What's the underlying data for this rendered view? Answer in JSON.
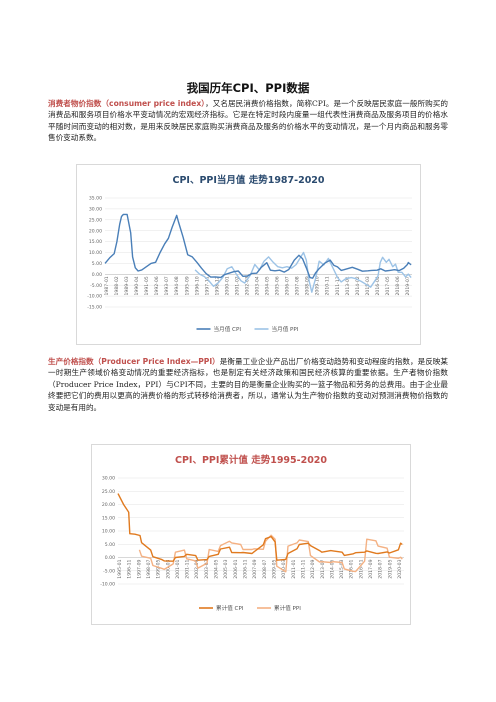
{
  "doc": {
    "title": "我国历年CPI、PPI数据",
    "p1_term": "消费者物价指数（consumer price index）",
    "p1_text": "，又名居民消费价格指数，简称CPI。是一个反映居民家庭一般所购买的消费品和服务项目价格水平变动情况的宏观经济指标。它是在特定时段内度量一组代表性消费商品及服务项目的价格水平随时间而变动的相对数，是用来反映居民家庭购买消费商品及服务的价格水平的变动情况，是一个月内商品和服务零售价变动系数。",
    "p2_term": "生产价格指数（Producer Price Index—PPI）",
    "p2_text": "是衡量工业企业产品出厂价格变动趋势和变动程度的指数，是反映某一时期生产领域价格变动情况的重要经济指标，也是制定有关经济政策和国民经济核算的重要依据。生产者物价指数（Producer Price Index，PPI）与CPI不同，主要的目的是衡量企业购买的一篮子物品和劳务的总费用。由于企业最终要把它们的费用以更高的消费价格的形式转移给消费者，所以，通常认为生产物价指数的变动对预测消费物价指数的变动是有用的。"
  },
  "chart_data": [
    {
      "type": "line",
      "title": "CPI、PPI当月值 走势1987-2020",
      "ylim": [
        -15,
        35
      ],
      "yticks": [
        "35.00",
        "30.00",
        "25.00",
        "20.00",
        "15.00",
        "10.00",
        "5.00",
        "0.00",
        "-5.00",
        "-10.00",
        "-15.00"
      ],
      "x_labels": [
        "1987-01",
        "1988-02",
        "1989-03",
        "1990-04",
        "1991-05",
        "1992-06",
        "1993-07",
        "1994-08",
        "1995-09",
        "1996-10",
        "1997-11",
        "1998-12",
        "2000-01",
        "2001-02",
        "2002-03",
        "2003-04",
        "2004-05",
        "2005-06",
        "2006-07",
        "2007-08",
        "2008-09",
        "2009-10",
        "2010-11",
        "2011-12",
        "2013-01",
        "2014-02",
        "2015-03",
        "2016-04",
        "2017-05",
        "2018-06",
        "2019-07"
      ],
      "grid": true,
      "legend_position": "bottom",
      "series": [
        {
          "name": "当月值 CPI",
          "color": "#4a7fb8",
          "points": [
            [
              1987.0,
              5.0
            ],
            [
              1987.5,
              7.5
            ],
            [
              1988.0,
              9.5
            ],
            [
              1988.3,
              15.0
            ],
            [
              1988.6,
              23.0
            ],
            [
              1988.8,
              26.5
            ],
            [
              1989.0,
              27.5
            ],
            [
              1989.4,
              27.5
            ],
            [
              1989.8,
              19.0
            ],
            [
              1990.0,
              8.0
            ],
            [
              1990.3,
              3.0
            ],
            [
              1990.6,
              1.5
            ],
            [
              1991.0,
              2.0
            ],
            [
              1991.5,
              3.5
            ],
            [
              1992.0,
              5.0
            ],
            [
              1992.5,
              5.5
            ],
            [
              1993.0,
              10.0
            ],
            [
              1993.5,
              14.0
            ],
            [
              1993.9,
              16.5
            ],
            [
              1994.3,
              21.5
            ],
            [
              1994.8,
              27.0
            ],
            [
              1995.0,
              24.0
            ],
            [
              1995.5,
              17.0
            ],
            [
              1996.0,
              9.0
            ],
            [
              1996.5,
              8.0
            ],
            [
              1997.0,
              5.5
            ],
            [
              1997.5,
              2.8
            ],
            [
              1998.0,
              0.3
            ],
            [
              1998.5,
              -1.3
            ],
            [
              1999.0,
              -1.2
            ],
            [
              1999.6,
              -1.4
            ],
            [
              2000.0,
              -0.2
            ],
            [
              2000.5,
              0.5
            ],
            [
              2001.0,
              1.2
            ],
            [
              2001.5,
              1.5
            ],
            [
              2002.0,
              -0.9
            ],
            [
              2002.5,
              -0.8
            ],
            [
              2003.0,
              0.4
            ],
            [
              2003.5,
              0.5
            ],
            [
              2004.0,
              3.2
            ],
            [
              2004.6,
              5.3
            ],
            [
              2005.0,
              1.9
            ],
            [
              2005.5,
              1.6
            ],
            [
              2006.0,
              1.9
            ],
            [
              2006.5,
              1.0
            ],
            [
              2007.0,
              2.2
            ],
            [
              2007.6,
              6.5
            ],
            [
              2008.1,
              8.7
            ],
            [
              2008.5,
              7.1
            ],
            [
              2008.9,
              3.0
            ],
            [
              2009.3,
              -1.5
            ],
            [
              2009.6,
              -1.8
            ],
            [
              2009.9,
              0.6
            ],
            [
              2010.3,
              2.6
            ],
            [
              2010.9,
              5.1
            ],
            [
              2011.5,
              6.5
            ],
            [
              2011.9,
              4.1
            ],
            [
              2012.3,
              3.4
            ],
            [
              2012.7,
              1.8
            ],
            [
              2013.0,
              2.1
            ],
            [
              2013.9,
              3.2
            ],
            [
              2014.5,
              2.3
            ],
            [
              2015.0,
              1.4
            ],
            [
              2015.6,
              1.6
            ],
            [
              2016.0,
              1.8
            ],
            [
              2016.6,
              1.9
            ],
            [
              2017.0,
              2.5
            ],
            [
              2017.5,
              1.5
            ],
            [
              2018.0,
              1.8
            ],
            [
              2018.5,
              2.1
            ],
            [
              2019.0,
              1.7
            ],
            [
              2019.5,
              2.8
            ],
            [
              2019.9,
              4.5
            ],
            [
              2020.0,
              5.4
            ],
            [
              2020.3,
              4.3
            ]
          ]
        },
        {
          "name": "当月值 PPI",
          "color": "#9dc3e6",
          "points": [
            [
              1996.8,
              2.0
            ],
            [
              1997.3,
              0.0
            ],
            [
              1997.8,
              -1.0
            ],
            [
              1998.3,
              -3.0
            ],
            [
              1998.8,
              -5.5
            ],
            [
              1999.3,
              -4.0
            ],
            [
              1999.8,
              -1.5
            ],
            [
              2000.3,
              2.5
            ],
            [
              2000.8,
              3.5
            ],
            [
              2001.3,
              0.0
            ],
            [
              2001.8,
              -3.0
            ],
            [
              2002.2,
              -4.0
            ],
            [
              2002.8,
              -0.5
            ],
            [
              2003.3,
              4.5
            ],
            [
              2003.8,
              2.0
            ],
            [
              2004.3,
              6.0
            ],
            [
              2004.8,
              8.0
            ],
            [
              2005.3,
              5.5
            ],
            [
              2005.8,
              3.5
            ],
            [
              2006.3,
              3.0
            ],
            [
              2006.8,
              3.5
            ],
            [
              2007.3,
              2.8
            ],
            [
              2007.8,
              4.5
            ],
            [
              2008.3,
              8.0
            ],
            [
              2008.6,
              10.0
            ],
            [
              2008.9,
              6.5
            ],
            [
              2009.2,
              -3.0
            ],
            [
              2009.5,
              -8.2
            ],
            [
              2009.9,
              -2.0
            ],
            [
              2010.3,
              6.0
            ],
            [
              2010.8,
              4.3
            ],
            [
              2011.3,
              7.3
            ],
            [
              2011.9,
              2.0
            ],
            [
              2012.3,
              -1.4
            ],
            [
              2012.7,
              -3.5
            ],
            [
              2013.2,
              -2.0
            ],
            [
              2013.8,
              -1.5
            ],
            [
              2014.3,
              -2.0
            ],
            [
              2014.9,
              -3.3
            ],
            [
              2015.4,
              -4.6
            ],
            [
              2015.9,
              -5.9
            ],
            [
              2016.3,
              -3.4
            ],
            [
              2016.7,
              -0.8
            ],
            [
              2016.95,
              5.5
            ],
            [
              2017.2,
              7.8
            ],
            [
              2017.6,
              5.5
            ],
            [
              2017.9,
              6.9
            ],
            [
              2018.3,
              3.5
            ],
            [
              2018.6,
              4.7
            ],
            [
              2018.9,
              0.9
            ],
            [
              2019.3,
              0.9
            ],
            [
              2019.7,
              -1.2
            ],
            [
              2020.0,
              0.1
            ],
            [
              2020.3,
              -1.5
            ]
          ]
        }
      ]
    },
    {
      "type": "line",
      "title": "CPI、PPI累计值 走势1995-2020",
      "ylim": [
        -10,
        30
      ],
      "yticks": [
        "30.00",
        "25.00",
        "20.00",
        "15.00",
        "10.00",
        "5.00",
        "0.00",
        "-5.00",
        "-10.00"
      ],
      "x_labels": [
        "1995-01",
        "1996-11",
        "1997-09",
        "1998-07",
        "1999-05",
        "2000-03",
        "2001-01",
        "2001-11",
        "2002-09",
        "2003-07",
        "2004-05",
        "2005-03",
        "2006-01",
        "2006-11",
        "2007-09",
        "2008-07",
        "2009-05",
        "2010-03",
        "2011-01",
        "2011-11",
        "2012-09",
        "2013-07",
        "2014-05",
        "2015-03",
        "2016-01",
        "2016-11",
        "2017-09",
        "2018-07",
        "2019-05",
        "2020-03"
      ],
      "grid": true,
      "legend_position": "bottom",
      "series": [
        {
          "name": "累计值 CPI",
          "color": "#e07a1f",
          "points": [
            [
              1995.0,
              24.1
            ],
            [
              1995.5,
              20.0
            ],
            [
              1995.95,
              17.1
            ],
            [
              1996.05,
              9.0
            ],
            [
              1996.5,
              8.8
            ],
            [
              1996.95,
              8.3
            ],
            [
              1997.1,
              5.6
            ],
            [
              1997.9,
              2.8
            ],
            [
              1998.1,
              0.3
            ],
            [
              1998.9,
              -0.8
            ],
            [
              1999.1,
              -1.3
            ],
            [
              1999.9,
              -1.4
            ],
            [
              2000.1,
              0.0
            ],
            [
              2000.9,
              0.4
            ],
            [
              2001.1,
              1.2
            ],
            [
              2001.9,
              0.7
            ],
            [
              2002.1,
              -1.0
            ],
            [
              2002.9,
              -0.8
            ],
            [
              2003.1,
              0.4
            ],
            [
              2003.9,
              1.2
            ],
            [
              2004.1,
              3.2
            ],
            [
              2004.9,
              3.9
            ],
            [
              2005.1,
              1.9
            ],
            [
              2005.9,
              1.8
            ],
            [
              2006.1,
              1.9
            ],
            [
              2006.9,
              1.5
            ],
            [
              2007.1,
              2.2
            ],
            [
              2007.9,
              4.8
            ],
            [
              2008.1,
              7.1
            ],
            [
              2008.6,
              7.9
            ],
            [
              2008.95,
              5.9
            ],
            [
              2009.1,
              -1.0
            ],
            [
              2009.9,
              -0.7
            ],
            [
              2010.1,
              1.5
            ],
            [
              2010.9,
              3.3
            ],
            [
              2011.1,
              4.9
            ],
            [
              2011.9,
              5.4
            ],
            [
              2012.1,
              4.5
            ],
            [
              2012.9,
              2.6
            ],
            [
              2013.1,
              2.0
            ],
            [
              2013.9,
              2.6
            ],
            [
              2014.1,
              2.5
            ],
            [
              2014.9,
              2.0
            ],
            [
              2015.1,
              0.8
            ],
            [
              2015.9,
              1.4
            ],
            [
              2016.1,
              1.8
            ],
            [
              2016.9,
              2.0
            ],
            [
              2017.1,
              2.5
            ],
            [
              2017.9,
              1.6
            ],
            [
              2018.1,
              1.5
            ],
            [
              2018.9,
              2.1
            ],
            [
              2019.1,
              1.7
            ],
            [
              2019.9,
              2.9
            ],
            [
              2020.1,
              5.4
            ],
            [
              2020.25,
              4.9
            ]
          ]
        },
        {
          "name": "累计值 PPI",
          "color": "#f4b183",
          "points": [
            [
              1996.9,
              2.9
            ],
            [
              1997.1,
              0.5
            ],
            [
              1997.9,
              -0.3
            ],
            [
              1998.1,
              -3.0
            ],
            [
              1998.9,
              -4.1
            ],
            [
              1999.1,
              -4.5
            ],
            [
              1999.9,
              -2.4
            ],
            [
              2000.1,
              2.0
            ],
            [
              2000.9,
              2.8
            ],
            [
              2001.1,
              -0.5
            ],
            [
              2001.9,
              -1.3
            ],
            [
              2002.1,
              -4.0
            ],
            [
              2002.9,
              -2.2
            ],
            [
              2003.1,
              3.0
            ],
            [
              2003.9,
              2.3
            ],
            [
              2004.1,
              4.5
            ],
            [
              2004.9,
              6.1
            ],
            [
              2005.1,
              5.5
            ],
            [
              2005.9,
              4.9
            ],
            [
              2006.1,
              3.0
            ],
            [
              2006.9,
              3.0
            ],
            [
              2007.1,
              3.3
            ],
            [
              2007.9,
              3.1
            ],
            [
              2008.1,
              6.1
            ],
            [
              2008.6,
              8.4
            ],
            [
              2008.95,
              6.9
            ],
            [
              2009.1,
              -3.3
            ],
            [
              2009.9,
              -5.4
            ],
            [
              2010.1,
              4.3
            ],
            [
              2010.9,
              5.5
            ],
            [
              2011.1,
              6.6
            ],
            [
              2011.9,
              6.0
            ],
            [
              2012.1,
              0.7
            ],
            [
              2012.9,
              -1.7
            ],
            [
              2013.1,
              -1.6
            ],
            [
              2013.9,
              -1.9
            ],
            [
              2014.1,
              -1.6
            ],
            [
              2014.9,
              -1.9
            ],
            [
              2015.1,
              -4.3
            ],
            [
              2015.9,
              -5.2
            ],
            [
              2016.1,
              -5.3
            ],
            [
              2016.9,
              -1.4
            ],
            [
              2017.1,
              6.9
            ],
            [
              2017.9,
              6.3
            ],
            [
              2018.1,
              4.3
            ],
            [
              2018.9,
              3.5
            ],
            [
              2019.1,
              0.1
            ],
            [
              2019.9,
              -0.3
            ],
            [
              2020.1,
              0.1
            ],
            [
              2020.25,
              -0.6
            ]
          ]
        }
      ]
    }
  ]
}
